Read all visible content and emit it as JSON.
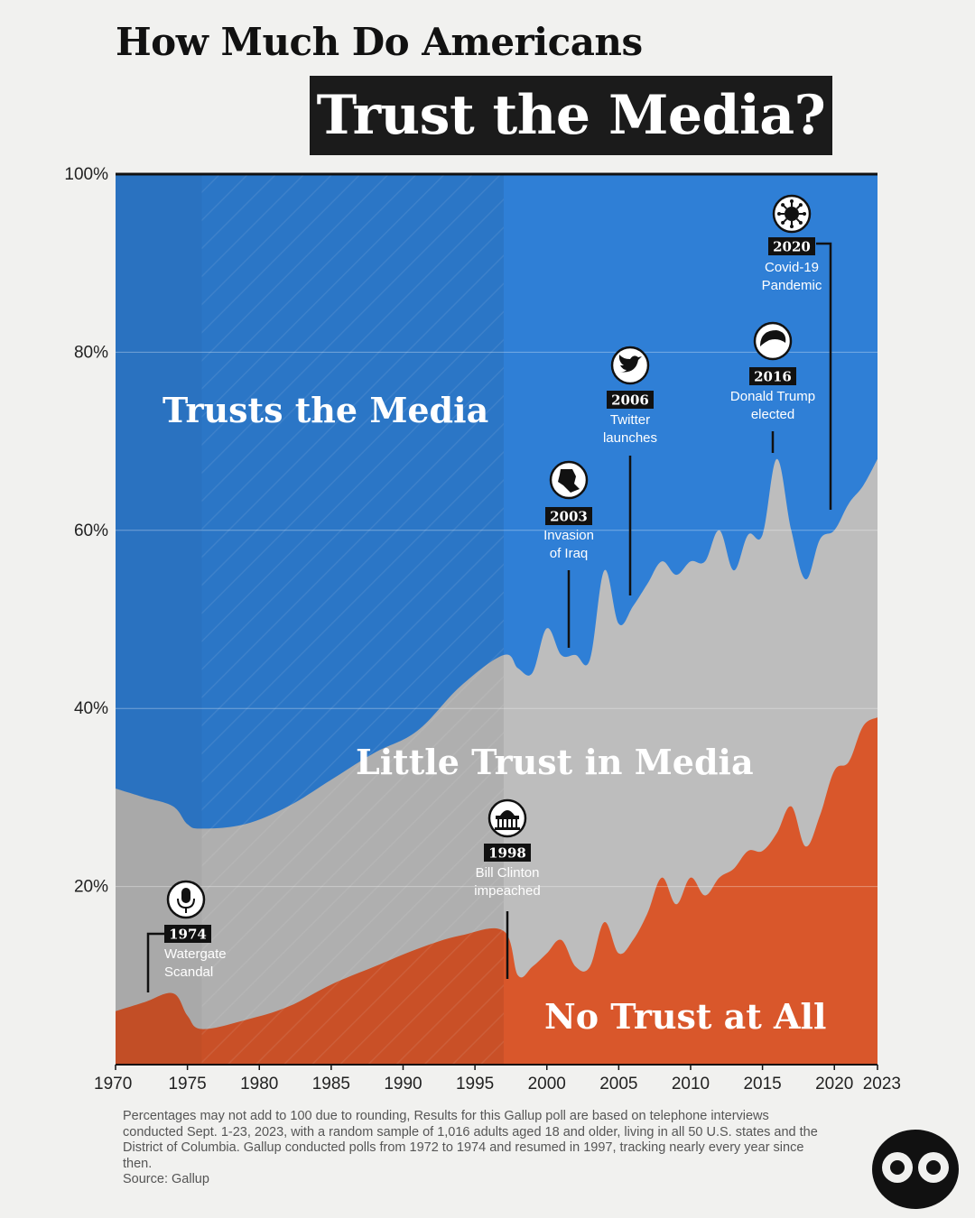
{
  "title": {
    "line1": "How Much Do Americans",
    "line2": "Trust the Media?"
  },
  "colors": {
    "trust": "#2f7fd6",
    "little": "#bdbdbd",
    "none": "#d9572b",
    "title_box": "#1b1b1b",
    "event_box": "#111111"
  },
  "chart_data": {
    "type": "area",
    "stacked": true,
    "xlim": [
      1970,
      2023
    ],
    "ylim": [
      0,
      100
    ],
    "x_ticks": [
      "1970",
      "1975",
      "1980",
      "1985",
      "1990",
      "1995",
      "2000",
      "2005",
      "2010",
      "2015",
      "2020",
      "2023"
    ],
    "y_ticks": [
      "20%",
      "40%",
      "60%",
      "80%",
      "100%"
    ],
    "grid": true,
    "no_poll_period": [
      1976,
      1997
    ],
    "x": [
      1970,
      1972,
      1974,
      1975,
      1976,
      1979,
      1982,
      1985,
      1988,
      1991,
      1994,
      1997,
      1998,
      1999,
      2000,
      2001,
      2002,
      2003,
      2004,
      2005,
      2006,
      2007,
      2008,
      2009,
      2010,
      2011,
      2012,
      2013,
      2014,
      2015,
      2016,
      2017,
      2018,
      2019,
      2020,
      2021,
      2022,
      2023
    ],
    "series": [
      {
        "name": "No Trust at All",
        "values": [
          6,
          7,
          8,
          5.5,
          4,
          5,
          6.5,
          9,
          11,
          13,
          14.5,
          15,
          10,
          11,
          12.5,
          14,
          11,
          11,
          16,
          12.5,
          14,
          17,
          21,
          18,
          21,
          19,
          21,
          22,
          24,
          24,
          26,
          29,
          24.5,
          28,
          33,
          34,
          38,
          39
        ]
      },
      {
        "name": "Little Trust in Media",
        "values": [
          25,
          23,
          21,
          21.5,
          22.5,
          22,
          22.5,
          23,
          24,
          24.5,
          28,
          31,
          34.5,
          33,
          36.5,
          32,
          35,
          34.5,
          39.5,
          37,
          37.5,
          37,
          35.5,
          37,
          35.5,
          37.5,
          39,
          33.5,
          35.5,
          35.5,
          42,
          31,
          30,
          31,
          27,
          29,
          27,
          29
        ]
      },
      {
        "name": "Trusts the Media",
        "values": [
          69,
          70,
          71,
          73,
          73.5,
          73,
          71,
          68,
          65,
          62.5,
          57.5,
          54,
          55.5,
          56,
          51,
          54,
          54,
          54.5,
          44.5,
          50.5,
          48.5,
          46,
          43.5,
          45,
          43.5,
          43.5,
          40,
          44.5,
          40.5,
          40.5,
          32,
          40,
          45.5,
          41,
          40,
          37,
          35,
          32
        ]
      }
    ],
    "events": [
      {
        "year": "1974",
        "x": 1974,
        "text": [
          "Watergate",
          "Scandal"
        ],
        "icon": "microphone-icon"
      },
      {
        "year": "1998",
        "x": 1998,
        "text": [
          "Bill Clinton",
          "impeached"
        ],
        "icon": "capitol-building-icon"
      },
      {
        "year": "2003",
        "x": 2002.5,
        "text": [
          "Invasion",
          "of Iraq"
        ],
        "icon": "iraq-map-icon"
      },
      {
        "year": "2006",
        "x": 2006.5,
        "text": [
          "Twitter",
          "launches"
        ],
        "icon": "twitter-bird-icon"
      },
      {
        "year": "2016",
        "x": 2016,
        "text": [
          "Donald Trump",
          "elected"
        ],
        "icon": "trump-hair-icon"
      },
      {
        "year": "2020",
        "x": 2020,
        "text": [
          "Covid-19",
          "Pandemic"
        ],
        "icon": "virus-icon"
      }
    ]
  },
  "labels": {
    "trust": "Trusts the Media",
    "little": "Little Trust in Media",
    "none": "No Trust at All"
  },
  "footnote": {
    "text": "Percentages may not add to 100 due to rounding, Results for this Gallup poll are based on telephone interviews conducted Sept. 1-23, 2023, with a random sample of 1,016 adults aged 18 and older, living in all 50 U.S. states and the District of Columbia.  Gallup conducted polls from 1972 to 1974 and resumed in 1997, tracking nearly every year since then.",
    "source": "Source: Gallup"
  },
  "logo_icon": "brand-logo-icon"
}
